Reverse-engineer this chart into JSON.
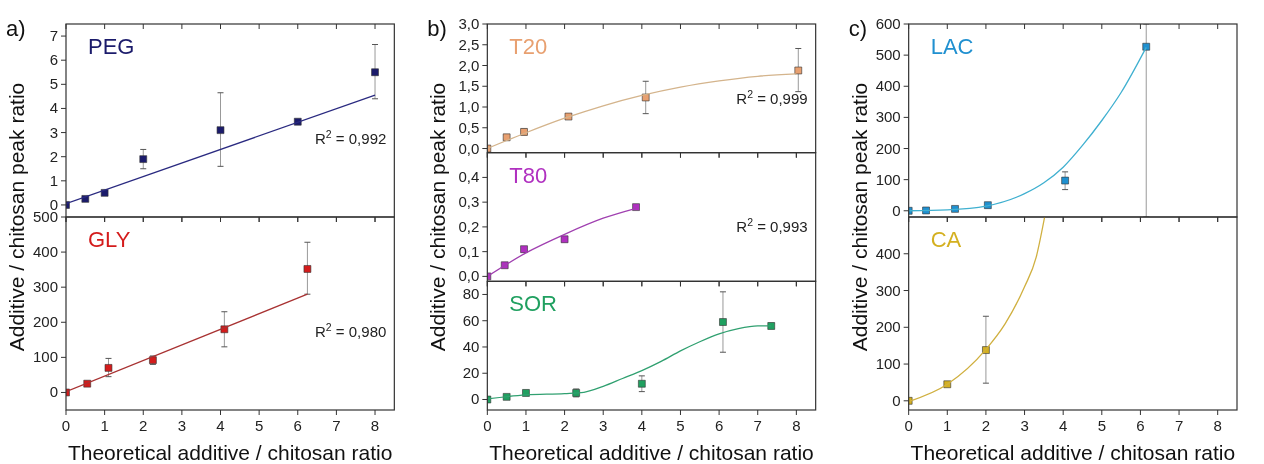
{
  "chart_data": [
    {
      "type": "scatter",
      "title": "a)",
      "ylabel": "Additive / chitosan peak ratio",
      "xlim": [
        0,
        8.5
      ],
      "xticks": [
        0,
        1,
        2,
        3,
        4,
        5,
        6,
        7,
        8
      ],
      "ylim": [
        -0.5,
        7.5
      ],
      "yticks": [
        0,
        1,
        2,
        3,
        4,
        5,
        6,
        7
      ],
      "tick_labels": "y",
      "series": [
        {
          "name": "PEG",
          "marker": "square",
          "color": "#1b1b6b",
          "x": [
            0,
            0.5,
            1,
            2,
            4,
            6,
            8
          ],
          "values": [
            0,
            0.25,
            0.5,
            1.9,
            3.1,
            3.45,
            5.5
          ],
          "errors": [
            null,
            null,
            null,
            [
              1.5,
              2.3
            ],
            [
              1.6,
              4.65
            ],
            null,
            [
              4.4,
              6.65
            ]
          ]
        },
        {
          "type": "line",
          "color": "#2a2a80",
          "x": [
            0,
            8
          ],
          "values": [
            0.05,
            4.55
          ]
        }
      ],
      "annotations": [
        "R$^{2}$ = 0,992"
      ]
    },
    {
      "type": "scatter",
      "xlabel": "Theoretical additive / chitosan ratio",
      "xlim": [
        0,
        8.5
      ],
      "xticks": [
        0,
        1,
        2,
        3,
        4,
        5,
        6,
        7,
        8
      ],
      "ylim": [
        -50,
        500
      ],
      "yticks": [
        0,
        100,
        200,
        300,
        400,
        500
      ],
      "series": [
        {
          "name": "GLY",
          "marker": "square",
          "color": "#d41c1c",
          "x": [
            0,
            0.55,
            1.1,
            2.25,
            4.1,
            6.25
          ],
          "values": [
            0,
            25,
            70,
            92,
            180,
            352
          ],
          "errors": [
            null,
            null,
            [
              45,
              97
            ],
            [
              80,
              104
            ],
            [
              130,
              230
            ],
            [
              280,
              428
            ]
          ]
        },
        {
          "type": "line",
          "color": "#a83232",
          "x": [
            0,
            6.25
          ],
          "values": [
            2,
            280
          ]
        }
      ],
      "annotations": [
        "R$^{2}$ = 0,980"
      ]
    },
    {
      "type": "scatter",
      "title": "b)",
      "ylabel": "Additive / chitosan peak ratio",
      "xlim": [
        0,
        8.5
      ],
      "xticks": [
        0,
        1,
        2,
        3,
        4,
        5,
        6,
        7,
        8
      ],
      "ylim": [
        -0.1,
        3.0
      ],
      "yticks": [
        {
          "value": 0,
          "label": "0,0"
        },
        {
          "value": 0.5,
          "label": "0,5"
        },
        {
          "value": 1,
          "label": "1,0"
        },
        {
          "value": 1.5,
          "label": "1,5"
        },
        {
          "value": 2,
          "label": "2,0"
        },
        {
          "value": 2.5,
          "label": "2,5"
        },
        {
          "value": 3,
          "label": "3,0"
        }
      ],
      "tick_labels": "y",
      "series": [
        {
          "name": "T20",
          "marker": "square",
          "color": "#e8a070",
          "x": [
            0,
            0.5,
            0.95,
            2.1,
            4.1,
            8.05
          ],
          "values": [
            0,
            0.27,
            0.4,
            0.77,
            1.23,
            1.88
          ],
          "errors": [
            null,
            0.05,
            0.07,
            0.03,
            [
              0.84,
              1.62
            ],
            [
              1.37,
              2.41
            ]
          ]
        },
        {
          "type": "line",
          "color": "#d4b48c",
          "x": [
            0,
            1,
            2,
            3,
            4,
            5,
            6,
            7,
            8
          ],
          "values": [
            0,
            0.38,
            0.73,
            1.03,
            1.28,
            1.48,
            1.63,
            1.74,
            1.8
          ]
        }
      ],
      "annotations": [
        "R$^{2}$ = 0,999"
      ]
    },
    {
      "type": "scatter",
      "xlim": [
        0,
        8.5
      ],
      "xticks": [
        0,
        1,
        2,
        3,
        4,
        5,
        6,
        7,
        8
      ],
      "ylim": [
        -0.02,
        0.5
      ],
      "yticks": [
        {
          "value": 0,
          "label": "0,0"
        },
        {
          "value": 0.1,
          "label": "0,1"
        },
        {
          "value": 0.2,
          "label": "0,2"
        },
        {
          "value": 0.3,
          "label": "0,3"
        },
        {
          "value": 0.4,
          "label": "0,4"
        }
      ],
      "tick_labels": "y",
      "series": [
        {
          "name": "T80",
          "marker": "square",
          "color": "#b030c0",
          "x": [
            0,
            0.45,
            0.95,
            2,
            3.85
          ],
          "values": [
            0,
            0.045,
            0.11,
            0.15,
            0.28
          ],
          "errors": [
            null,
            null,
            0.01,
            0.01,
            null
          ]
        },
        {
          "type": "line",
          "color": "#a040b0",
          "x": [
            0,
            1,
            2,
            3,
            3.85
          ],
          "values": [
            0,
            0.095,
            0.17,
            0.235,
            0.275
          ]
        }
      ],
      "annotations": [
        "R$^{2}$ = 0,993"
      ]
    },
    {
      "type": "scatter",
      "xlabel": "Theoretical additive / chitosan ratio",
      "xlim": [
        0,
        8.5
      ],
      "xticks": [
        0,
        1,
        2,
        3,
        4,
        5,
        6,
        7,
        8
      ],
      "ylim": [
        -8,
        90
      ],
      "yticks": [
        0,
        20,
        40,
        60,
        80
      ],
      "series": [
        {
          "name": "SOR",
          "marker": "square",
          "color": "#20a060",
          "x": [
            0,
            0.5,
            1,
            2.3,
            4,
            6.1,
            7.35
          ],
          "values": [
            0,
            2,
            5,
            5,
            12,
            59,
            56
          ],
          "errors": [
            null,
            null,
            2,
            3,
            [
              6,
              18
            ],
            [
              36,
              82
            ],
            2
          ]
        },
        {
          "type": "line",
          "color": "#30a070",
          "x": [
            0,
            1,
            2,
            2.5,
            3,
            3.5,
            4,
            4.5,
            5,
            5.5,
            6,
            6.5,
            7,
            7.35
          ],
          "values": [
            0.5,
            3.5,
            4.5,
            5.5,
            10,
            16,
            22,
            29,
            37,
            44,
            50,
            54,
            56,
            56
          ]
        }
      ]
    },
    {
      "type": "scatter",
      "title": "c)",
      "ylabel": "Additive / chitosan peak ratio",
      "xlim": [
        0,
        8.5
      ],
      "xticks": [
        0,
        1,
        2,
        3,
        4,
        5,
        6,
        7,
        8
      ],
      "ylim": [
        -20,
        600
      ],
      "yticks": [
        0,
        100,
        200,
        300,
        400,
        500,
        600
      ],
      "tick_labels": "y",
      "series": [
        {
          "name": "LAC",
          "marker": "square",
          "color": "#2090d0",
          "x": [
            0,
            0.45,
            1.2,
            2.05,
            4.05,
            6.15
          ],
          "values": [
            0,
            1,
            6,
            18,
            97,
            527
          ],
          "errors": [
            null,
            null,
            null,
            null,
            [
              68,
              125
            ],
            [
              -20,
              600
            ]
          ]
        },
        {
          "type": "line",
          "color": "#40b0d0",
          "x": [
            0,
            1,
            2,
            3,
            3.5,
            4,
            4.5,
            5,
            5.5,
            6.15
          ],
          "values": [
            0,
            3,
            15,
            55,
            90,
            140,
            210,
            290,
            380,
            525
          ]
        }
      ]
    },
    {
      "type": "scatter",
      "xlabel": "Theoretical additive / chitosan ratio",
      "xlim": [
        0,
        8.5
      ],
      "xticks": [
        0,
        1,
        2,
        3,
        4,
        5,
        6,
        7,
        8
      ],
      "ylim": [
        -25,
        500
      ],
      "yticks": [
        0,
        100,
        200,
        300,
        400
      ],
      "series": [
        {
          "name": "CA",
          "marker": "square",
          "color": "#d4b020",
          "x": [
            0,
            1,
            2
          ],
          "values": [
            0,
            45,
            138
          ],
          "errors": [
            null,
            null,
            [
              48,
              230
            ]
          ]
        },
        {
          "type": "line",
          "color": "#d0b040",
          "x": [
            0,
            1,
            2,
            2.5,
            3,
            3.3,
            3.52
          ],
          "values": [
            -2,
            45,
            140,
            210,
            310,
            390,
            500
          ]
        }
      ]
    }
  ]
}
